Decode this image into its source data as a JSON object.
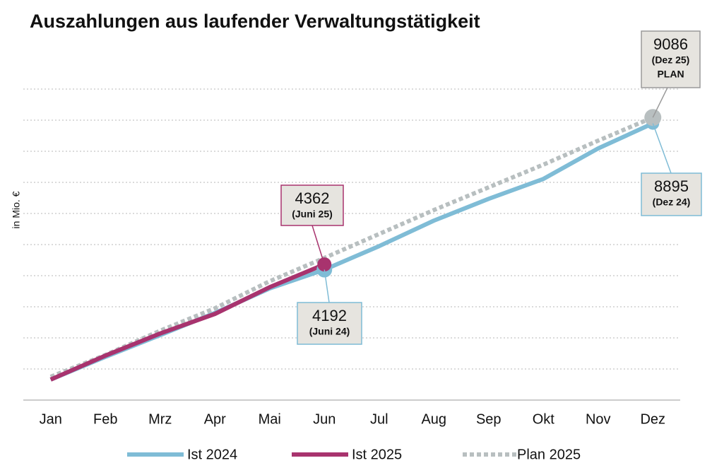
{
  "chart_data": {
    "type": "line",
    "title": "Auszahlungen aus laufender Verwaltungstätigkeit",
    "y_label": "in Mio. €",
    "categories": [
      "Jan",
      "Feb",
      "Mrz",
      "Apr",
      "Mai",
      "Jun",
      "Jul",
      "Aug",
      "Sep",
      "Okt",
      "Nov",
      "Dez"
    ],
    "series": [
      {
        "name": "Ist 2024",
        "color": "#7fbcd6",
        "values": [
          660,
          1390,
          2090,
          2800,
          3590,
          4192,
          4950,
          5770,
          6470,
          7110,
          8090,
          8895
        ]
      },
      {
        "name": "Ist 2025",
        "color": "#a8336e",
        "values": [
          660,
          1430,
          2140,
          2770,
          3630,
          4362,
          null,
          null,
          null,
          null,
          null,
          null
        ]
      },
      {
        "name": "Plan 2025",
        "color": "#b8bfc0",
        "dashed": true,
        "values": [
          750,
          1450,
          2230,
          2950,
          3820,
          4570,
          5340,
          6110,
          6840,
          7570,
          8340,
          9086
        ]
      }
    ],
    "annotations": [
      {
        "value": 4362,
        "label": "(Juni 25)"
      },
      {
        "value": 4192,
        "label": "(Juni 24)"
      },
      {
        "value": 8895,
        "label": "(Dez 24)"
      },
      {
        "value": 9086,
        "label": "(Dez 25)",
        "note": "PLAN"
      }
    ],
    "ylim": [
      0,
      10000
    ],
    "yticks": [
      1000,
      2000,
      3000,
      4000,
      5000,
      6000,
      7000,
      8000,
      9000,
      10000
    ],
    "grid": true,
    "legend": "bottom"
  }
}
